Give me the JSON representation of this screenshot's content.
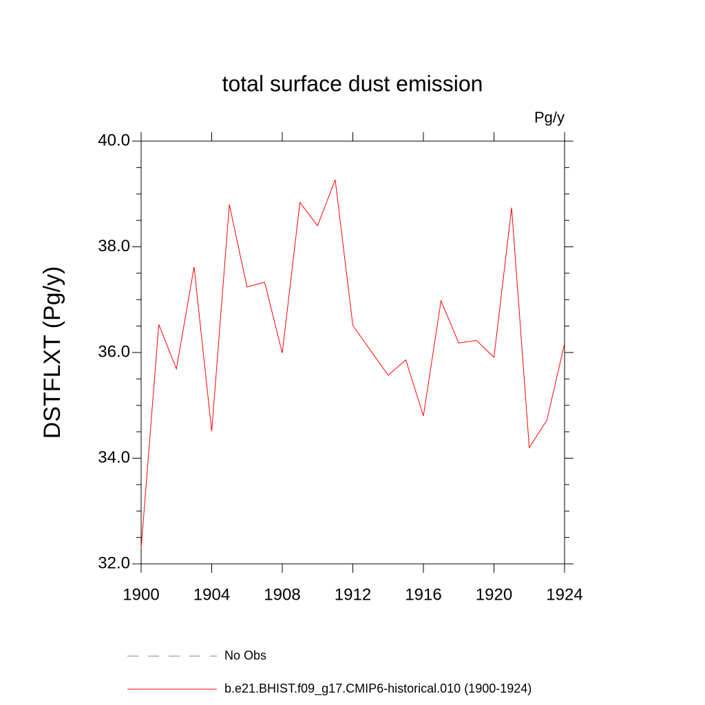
{
  "chart_data": {
    "type": "line",
    "title": "total surface dust emission",
    "units_label": "Pg/y",
    "y_label": "DSTFLXT  (Pg/y)",
    "x": [
      1900,
      1901,
      1902,
      1903,
      1904,
      1905,
      1906,
      1907,
      1908,
      1909,
      1910,
      1911,
      1912,
      1913,
      1914,
      1915,
      1916,
      1917,
      1918,
      1919,
      1920,
      1921,
      1922,
      1923,
      1924
    ],
    "series": [
      {
        "name": "b.e21.BHIST.f09_g17.CMIP6-historical.010 (1900-1924)",
        "color": "#ff0000",
        "values": [
          32.29,
          36.53,
          35.69,
          37.62,
          34.51,
          38.8,
          37.24,
          37.33,
          35.99,
          38.84,
          38.4,
          39.27,
          36.51,
          36.04,
          35.57,
          35.86,
          34.8,
          36.98,
          36.18,
          36.23,
          35.91,
          38.74,
          34.2,
          34.72,
          36.17
        ]
      }
    ],
    "legend_extra": [
      {
        "name": "No Obs",
        "color": "#7a7ab8",
        "dash": "dashed"
      }
    ],
    "xlim": [
      1900,
      1924
    ],
    "xticks": [
      1900,
      1904,
      1908,
      1912,
      1916,
      1920,
      1924
    ],
    "ylim": [
      32,
      40
    ],
    "yticks": [
      {
        "value": 32,
        "label": "32.0"
      },
      {
        "value": 34,
        "label": "34.0"
      },
      {
        "value": 36,
        "label": "36.0"
      },
      {
        "value": 38,
        "label": "38.0"
      },
      {
        "value": 40,
        "label": "40.0"
      }
    ],
    "yminorticks": [
      32.5,
      33,
      33.5,
      34.5,
      35,
      35.5,
      36.5,
      37,
      37.5,
      38.5,
      39,
      39.5
    ]
  }
}
